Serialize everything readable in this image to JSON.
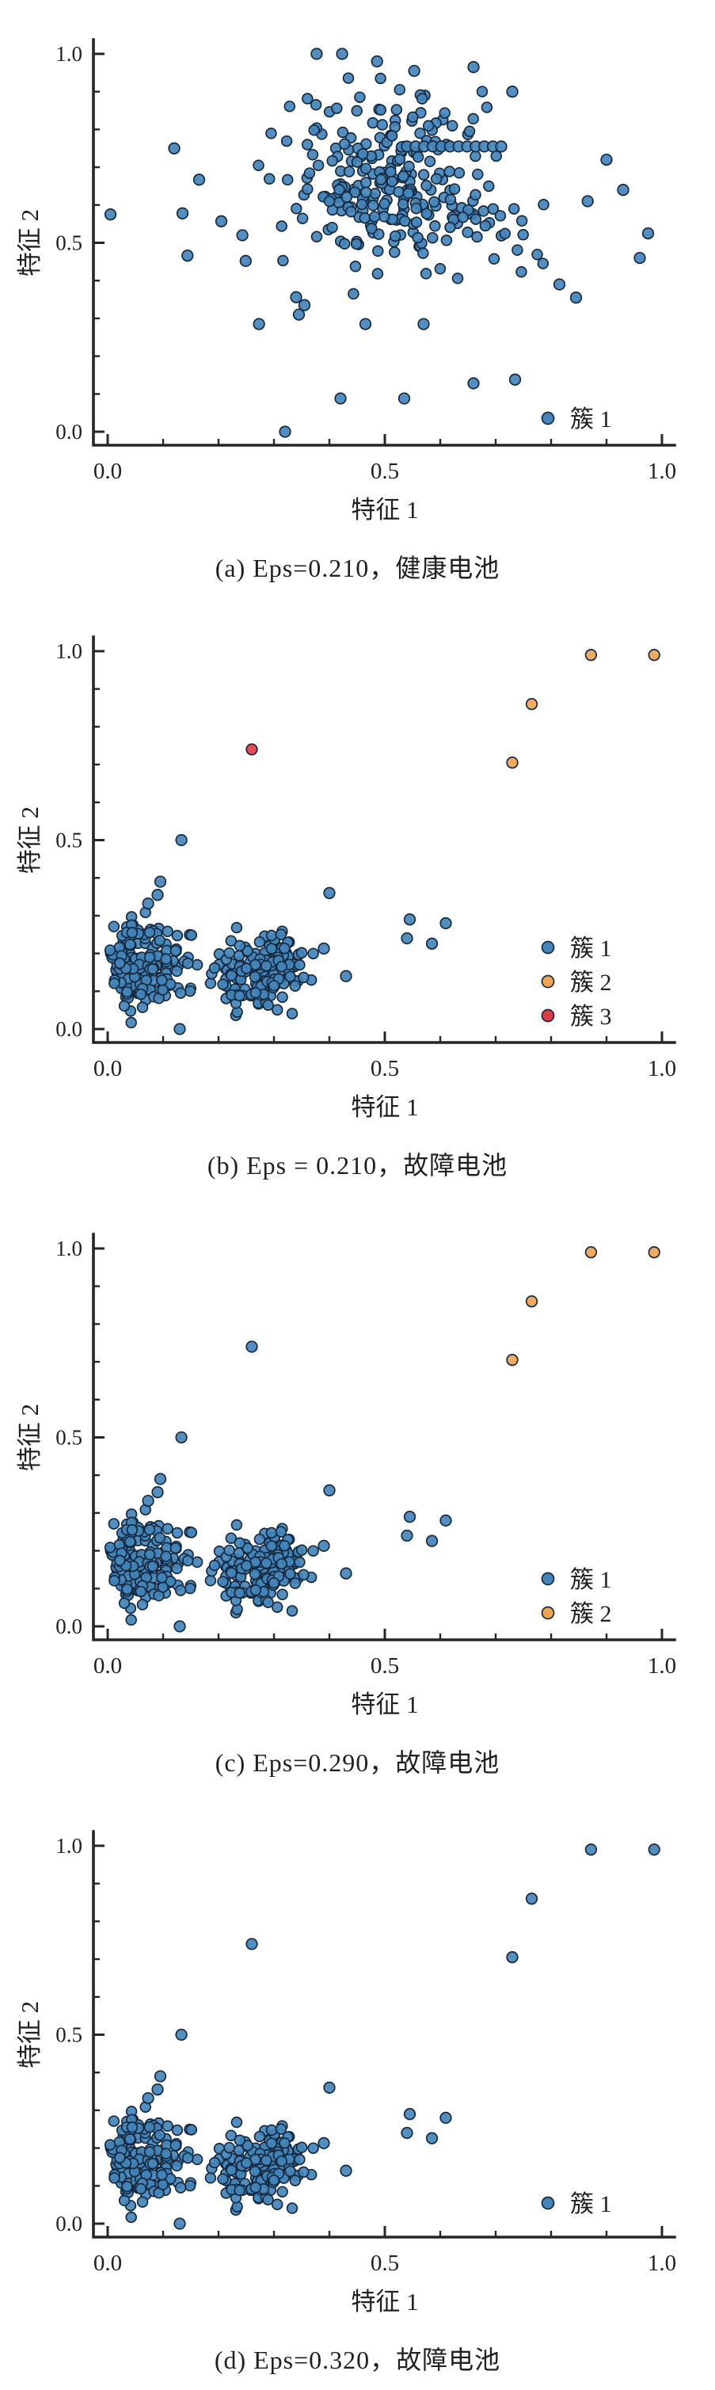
{
  "figure_title": "DBSCAN clustering scatter panels",
  "colors": {
    "cluster1": "#4385bb",
    "cluster2": "#f0a352",
    "cluster3": "#e23b41",
    "point_edge": "#17293e",
    "axis": "#2a2425",
    "text": "#231f20"
  },
  "chart_data": [
    {
      "id": "a",
      "type": "scatter",
      "caption": "(a) Eps=0.210，健康电池",
      "xlabel": "特征 1",
      "ylabel": "特征 2",
      "xlim": [
        0,
        1
      ],
      "ylim": [
        0,
        1
      ],
      "xticks": {
        "values": [
          0,
          0.5,
          1
        ],
        "labels": [
          "0.0",
          "0.5",
          "1.0"
        ]
      },
      "yticks": {
        "values": [
          0,
          0.5,
          1
        ],
        "labels": [
          "0.0",
          "0.5",
          "1.0"
        ]
      },
      "legend": {
        "marker_x": 692,
        "label_x": 720,
        "rows": [
          {
            "label": "簇 1",
            "cluster": 1,
            "y": 528
          }
        ]
      },
      "groups": [
        {
          "cluster": 1,
          "blobs": [
            {
              "n": 150,
              "cx": 0.505,
              "cy": 0.715,
              "sx": 0.095,
              "sy": 0.1,
              "clip": [
                0.24,
                0.8,
                0.33,
                0.998
              ],
              "seed": 101
            },
            {
              "n": 110,
              "cx": 0.555,
              "cy": 0.575,
              "sx": 0.115,
              "sy": 0.085,
              "clip": [
                0.24,
                0.82,
                0.3,
                0.95
              ],
              "seed": 202
            }
          ],
          "points": [
            [
              0.377,
              1.0
            ],
            [
              0.423,
              1.0
            ],
            [
              0.486,
              0.98
            ],
            [
              0.553,
              0.955
            ],
            [
              0.66,
              0.965
            ],
            [
              0.73,
              0.9
            ],
            [
              0.54,
              0.755
            ],
            [
              0.5555,
              0.755
            ],
            [
              0.571,
              0.755
            ],
            [
              0.5865,
              0.755
            ],
            [
              0.602,
              0.755
            ],
            [
              0.6175,
              0.755
            ],
            [
              0.633,
              0.755
            ],
            [
              0.6485,
              0.755
            ],
            [
              0.664,
              0.755
            ],
            [
              0.6795,
              0.755
            ],
            [
              0.695,
              0.755
            ],
            [
              0.71,
              0.755
            ],
            [
              0.005,
              0.575
            ],
            [
              0.135,
              0.578
            ],
            [
              0.12,
              0.75
            ],
            [
              0.165,
              0.667
            ],
            [
              0.205,
              0.557
            ],
            [
              0.243,
              0.52
            ],
            [
              0.144,
              0.466
            ],
            [
              0.249,
              0.452
            ],
            [
              0.34,
              0.356
            ],
            [
              0.355,
              0.335
            ],
            [
              0.345,
              0.31
            ],
            [
              0.273,
              0.285
            ],
            [
              0.465,
              0.285
            ],
            [
              0.57,
              0.285
            ],
            [
              0.32,
              0.0
            ],
            [
              0.42,
              0.088
            ],
            [
              0.535,
              0.088
            ],
            [
              0.66,
              0.128
            ],
            [
              0.735,
              0.138
            ],
            [
              0.866,
              0.61
            ],
            [
              0.93,
              0.64
            ],
            [
              0.975,
              0.525
            ],
            [
              0.96,
              0.46
            ],
            [
              0.815,
              0.39
            ],
            [
              0.845,
              0.355
            ],
            [
              0.9,
              0.72
            ]
          ]
        }
      ]
    },
    {
      "id": "b",
      "type": "scatter",
      "caption": "(b) Eps = 0.210，故障电池",
      "xlabel": "特征 1",
      "ylabel": "特征 2",
      "xlim": [
        0,
        1
      ],
      "ylim": [
        0,
        1
      ],
      "xticks": {
        "values": [
          0,
          0.5,
          1
        ],
        "labels": [
          "0.0",
          "0.5",
          "1.0"
        ]
      },
      "yticks": {
        "values": [
          0,
          0.5,
          1
        ],
        "labels": [
          "0.0",
          "0.5",
          "1.0"
        ]
      },
      "legend": {
        "marker_x": 692,
        "label_x": 720,
        "rows": [
          {
            "label": "簇 1",
            "cluster": 1,
            "y": 442
          },
          {
            "label": "簇 2",
            "cluster": 2,
            "y": 485
          },
          {
            "label": "簇 3",
            "cluster": 3,
            "y": 528
          }
        ]
      },
      "groups": [
        {
          "cluster": 1,
          "blobs": [
            {
              "n": 160,
              "cx": 0.058,
              "cy": 0.168,
              "sx": 0.036,
              "sy": 0.058,
              "clip": [
                0.004,
                0.178,
                0.01,
                0.325
              ],
              "seed": 303
            },
            {
              "n": 160,
              "cx": 0.272,
              "cy": 0.152,
              "sx": 0.044,
              "sy": 0.047,
              "clip": [
                0.185,
                0.398,
                0.035,
                0.272
              ],
              "seed": 404
            }
          ],
          "points": [
            [
              0.133,
              0.5
            ],
            [
              0.095,
              0.39
            ],
            [
              0.09,
              0.355
            ],
            [
              0.073,
              0.332
            ],
            [
              0.4,
              0.36
            ],
            [
              0.545,
              0.29
            ],
            [
              0.61,
              0.28
            ],
            [
              0.54,
              0.24
            ],
            [
              0.585,
              0.226
            ],
            [
              0.39,
              0.213
            ],
            [
              0.43,
              0.14
            ],
            [
              0.13,
              0.0
            ]
          ]
        },
        {
          "cluster": 2,
          "blobs": [],
          "points": [
            [
              0.73,
              0.705
            ],
            [
              0.765,
              0.86
            ],
            [
              0.872,
              0.99
            ],
            [
              0.986,
              0.99
            ]
          ]
        },
        {
          "cluster": 3,
          "blobs": [],
          "points": [
            [
              0.26,
              0.74
            ]
          ]
        }
      ]
    },
    {
      "id": "c",
      "type": "scatter",
      "caption": "(c) Eps=0.290，故障电池",
      "xlabel": "特征 1",
      "ylabel": "特征 2",
      "xlim": [
        0,
        1
      ],
      "ylim": [
        0,
        1
      ],
      "xticks": {
        "values": [
          0,
          0.5,
          1
        ],
        "labels": [
          "0.0",
          "0.5",
          "1.0"
        ]
      },
      "yticks": {
        "values": [
          0,
          0.5,
          1
        ],
        "labels": [
          "0.0",
          "0.5",
          "1.0"
        ]
      },
      "legend": {
        "marker_x": 692,
        "label_x": 720,
        "rows": [
          {
            "label": "簇 1",
            "cluster": 1,
            "y": 485
          },
          {
            "label": "簇 2",
            "cluster": 2,
            "y": 528
          }
        ]
      },
      "groups": [
        {
          "cluster": 1,
          "blobs": [
            {
              "n": 160,
              "cx": 0.058,
              "cy": 0.168,
              "sx": 0.036,
              "sy": 0.058,
              "clip": [
                0.004,
                0.178,
                0.01,
                0.325
              ],
              "seed": 303
            },
            {
              "n": 160,
              "cx": 0.272,
              "cy": 0.152,
              "sx": 0.044,
              "sy": 0.047,
              "clip": [
                0.185,
                0.398,
                0.035,
                0.272
              ],
              "seed": 404
            }
          ],
          "points": [
            [
              0.133,
              0.5
            ],
            [
              0.095,
              0.39
            ],
            [
              0.09,
              0.355
            ],
            [
              0.073,
              0.332
            ],
            [
              0.4,
              0.36
            ],
            [
              0.545,
              0.29
            ],
            [
              0.61,
              0.28
            ],
            [
              0.54,
              0.24
            ],
            [
              0.585,
              0.226
            ],
            [
              0.39,
              0.213
            ],
            [
              0.43,
              0.14
            ],
            [
              0.13,
              0.0
            ],
            [
              0.26,
              0.74
            ]
          ]
        },
        {
          "cluster": 2,
          "blobs": [],
          "points": [
            [
              0.73,
              0.705
            ],
            [
              0.765,
              0.86
            ],
            [
              0.872,
              0.99
            ],
            [
              0.986,
              0.99
            ]
          ]
        }
      ]
    },
    {
      "id": "d",
      "type": "scatter",
      "caption": "(d) Eps=0.320，故障电池",
      "xlabel": "特征 1",
      "ylabel": "特征 2",
      "xlim": [
        0,
        1
      ],
      "ylim": [
        0,
        1
      ],
      "xticks": {
        "values": [
          0,
          0.5,
          1
        ],
        "labels": [
          "0.0",
          "0.5",
          "1.0"
        ]
      },
      "yticks": {
        "values": [
          0,
          0.5,
          1
        ],
        "labels": [
          "0.0",
          "0.5",
          "1.0"
        ]
      },
      "legend": {
        "marker_x": 692,
        "label_x": 720,
        "rows": [
          {
            "label": "簇 1",
            "cluster": 1,
            "y": 519
          }
        ]
      },
      "groups": [
        {
          "cluster": 1,
          "blobs": [
            {
              "n": 160,
              "cx": 0.058,
              "cy": 0.168,
              "sx": 0.036,
              "sy": 0.058,
              "clip": [
                0.004,
                0.178,
                0.01,
                0.325
              ],
              "seed": 303
            },
            {
              "n": 160,
              "cx": 0.272,
              "cy": 0.152,
              "sx": 0.044,
              "sy": 0.047,
              "clip": [
                0.185,
                0.398,
                0.035,
                0.272
              ],
              "seed": 404
            }
          ],
          "points": [
            [
              0.133,
              0.5
            ],
            [
              0.095,
              0.39
            ],
            [
              0.09,
              0.355
            ],
            [
              0.073,
              0.332
            ],
            [
              0.4,
              0.36
            ],
            [
              0.545,
              0.29
            ],
            [
              0.61,
              0.28
            ],
            [
              0.54,
              0.24
            ],
            [
              0.585,
              0.226
            ],
            [
              0.39,
              0.213
            ],
            [
              0.43,
              0.14
            ],
            [
              0.13,
              0.0
            ],
            [
              0.26,
              0.74
            ],
            [
              0.73,
              0.705
            ],
            [
              0.765,
              0.86
            ],
            [
              0.872,
              0.99
            ],
            [
              0.986,
              0.99
            ]
          ]
        }
      ]
    }
  ]
}
